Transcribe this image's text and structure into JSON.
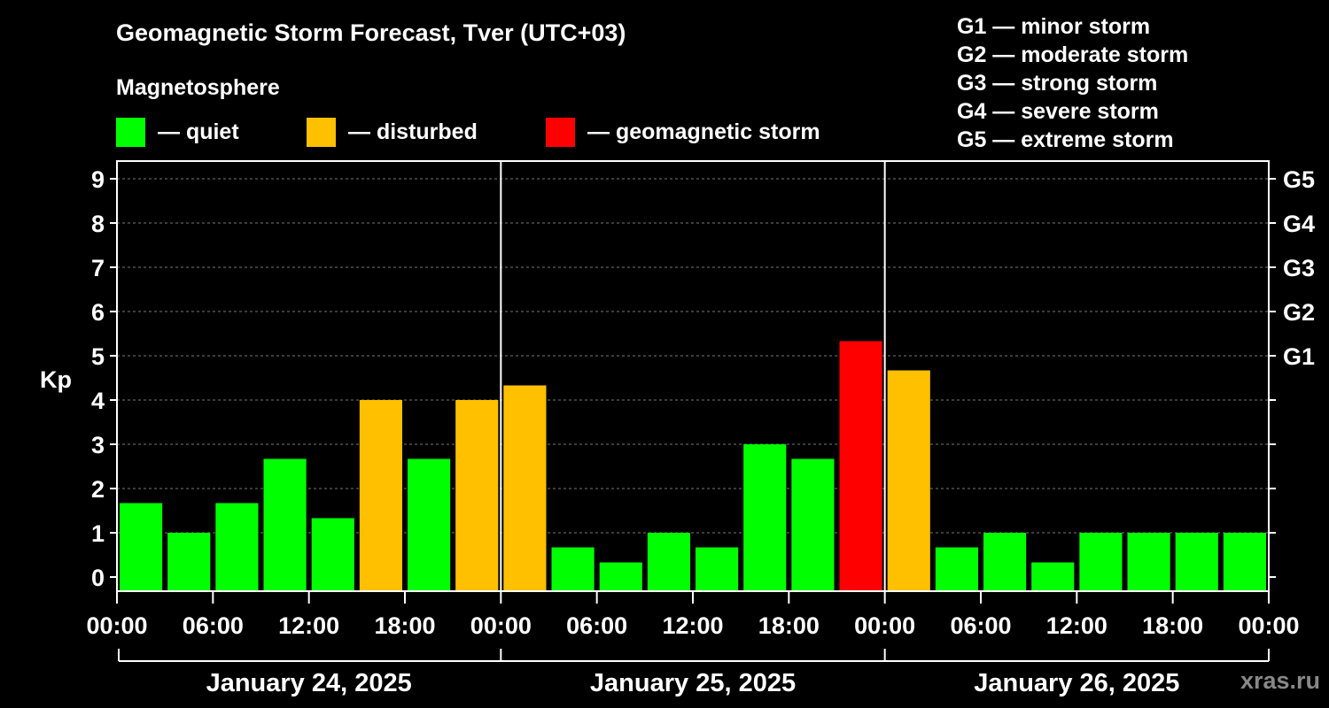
{
  "title": "Geomagnetic Storm Forecast, Tver (UTC+03)",
  "subtitle": "Magnetosphere",
  "legend": [
    {
      "label": "— quiet",
      "color": "#00ff00"
    },
    {
      "label": "— disturbed",
      "color": "#ffc000"
    },
    {
      "label": "— geomagnetic storm",
      "color": "#ff0000"
    }
  ],
  "storm_scale": [
    "G1 — minor storm",
    "G2 — moderate storm",
    "G3 — strong storm",
    "G4 — severe storm",
    "G5 — extreme storm"
  ],
  "watermark": "xras.ru",
  "chart_data": {
    "type": "bar",
    "ylabel": "Kp",
    "ylim": [
      0,
      9
    ],
    "y_ticks": [
      "0",
      "1",
      "2",
      "3",
      "4",
      "5",
      "6",
      "7",
      "8",
      "9"
    ],
    "right_axis_labels": [
      {
        "kp": 5,
        "label": "G1"
      },
      {
        "kp": 6,
        "label": "G2"
      },
      {
        "kp": 7,
        "label": "G3"
      },
      {
        "kp": 8,
        "label": "G4"
      },
      {
        "kp": 9,
        "label": "G5"
      }
    ],
    "x_tick_labels": [
      "00:00",
      "06:00",
      "12:00",
      "18:00",
      "00:00",
      "06:00",
      "12:00",
      "18:00",
      "00:00",
      "06:00",
      "12:00",
      "18:00",
      "00:00"
    ],
    "days": [
      "January 24, 2025",
      "January 25, 2025",
      "January 26, 2025"
    ],
    "values": [
      1.67,
      1.0,
      1.67,
      2.67,
      1.33,
      4.0,
      2.67,
      4.0,
      4.33,
      0.67,
      0.33,
      1.0,
      0.67,
      3.0,
      2.67,
      5.33,
      4.67,
      0.67,
      1.0,
      0.33,
      1.0,
      1.0,
      1.0,
      1.0
    ],
    "colors": {
      "quiet": "#00ff00",
      "disturbed": "#ffc000",
      "storm": "#ff0000"
    },
    "grid": "dashed horizontal at integer Kp"
  }
}
